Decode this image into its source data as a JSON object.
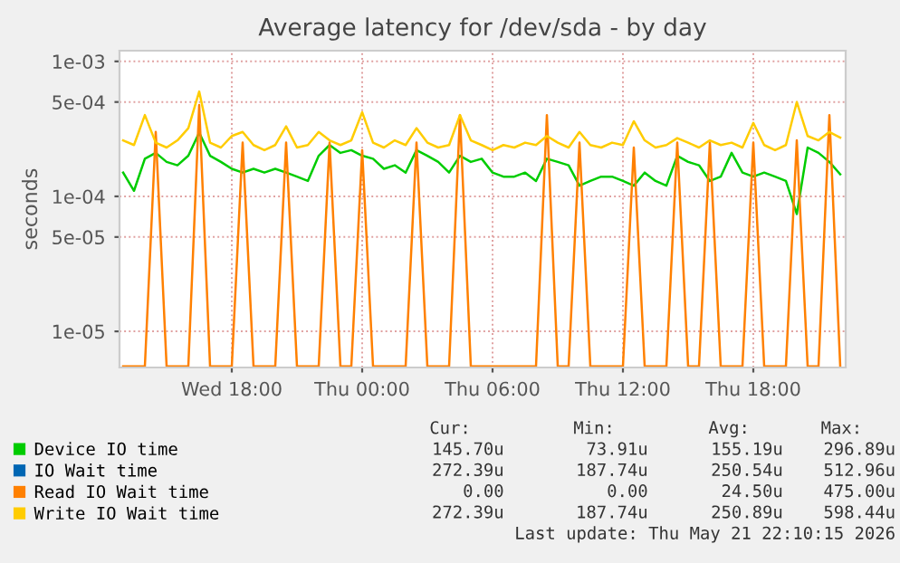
{
  "chart_data": {
    "type": "line",
    "title": "Average latency for /dev/sda - by day",
    "ylabel": "seconds",
    "log": "y",
    "x": [
      "2026-05-20T13:00",
      "2026-05-20T13:30",
      "2026-05-20T14:00",
      "2026-05-20T14:30",
      "2026-05-20T15:00",
      "2026-05-20T15:30",
      "2026-05-20T16:00",
      "2026-05-20T16:30",
      "2026-05-20T17:00",
      "2026-05-20T17:30",
      "2026-05-20T18:00",
      "2026-05-20T18:30",
      "2026-05-20T19:00",
      "2026-05-20T19:30",
      "2026-05-20T20:00",
      "2026-05-20T20:30",
      "2026-05-20T21:00",
      "2026-05-20T21:30",
      "2026-05-20T22:00",
      "2026-05-20T22:30",
      "2026-05-20T23:00",
      "2026-05-20T23:30",
      "2026-05-21T00:00",
      "2026-05-21T00:30",
      "2026-05-21T01:00",
      "2026-05-21T01:30",
      "2026-05-21T02:00",
      "2026-05-21T02:30",
      "2026-05-21T03:00",
      "2026-05-21T03:30",
      "2026-05-21T04:00",
      "2026-05-21T04:30",
      "2026-05-21T05:00",
      "2026-05-21T05:30",
      "2026-05-21T06:00",
      "2026-05-21T06:30",
      "2026-05-21T07:00",
      "2026-05-21T07:30",
      "2026-05-21T08:00",
      "2026-05-21T08:30",
      "2026-05-21T09:00",
      "2026-05-21T09:30",
      "2026-05-21T10:00",
      "2026-05-21T10:30",
      "2026-05-21T11:00",
      "2026-05-21T11:30",
      "2026-05-21T12:00",
      "2026-05-21T12:30",
      "2026-05-21T13:00",
      "2026-05-21T13:30",
      "2026-05-21T14:00",
      "2026-05-21T14:30",
      "2026-05-21T15:00",
      "2026-05-21T15:30",
      "2026-05-21T16:00",
      "2026-05-21T16:30",
      "2026-05-21T17:00",
      "2026-05-21T17:30",
      "2026-05-21T18:00",
      "2026-05-21T18:30",
      "2026-05-21T19:00",
      "2026-05-21T19:30",
      "2026-05-21T20:00",
      "2026-05-21T20:30",
      "2026-05-21T21:00",
      "2026-05-21T21:30",
      "2026-05-21T22:00"
    ],
    "series": [
      {
        "name": "Device IO time",
        "color": "#00cc00",
        "values": [
          0.00015,
          0.00011,
          0.00019,
          0.00021,
          0.00018,
          0.00017,
          0.0002,
          0.000297,
          0.0002,
          0.00018,
          0.00016,
          0.00015,
          0.00016,
          0.00015,
          0.00016,
          0.00015,
          0.00014,
          0.00013,
          0.0002,
          0.00024,
          0.00021,
          0.00022,
          0.0002,
          0.00019,
          0.00016,
          0.00017,
          0.00015,
          0.00022,
          0.0002,
          0.00018,
          0.00015,
          0.0002,
          0.00018,
          0.00019,
          0.00015,
          0.00014,
          0.00014,
          0.00015,
          0.00013,
          0.00019,
          0.00018,
          0.00017,
          0.00012,
          0.00013,
          0.00014,
          0.00014,
          0.00013,
          0.00012,
          0.00015,
          0.00013,
          0.00012,
          0.0002,
          0.00018,
          0.00017,
          0.00013,
          0.00014,
          0.00021,
          0.00015,
          0.00014,
          0.00015,
          0.00014,
          0.00013,
          7.4e-05,
          0.00023,
          0.00021,
          0.00018,
          0.0001457
        ]
      },
      {
        "name": "IO Wait time",
        "color": "#0066b3",
        "values": [
          null,
          null,
          null,
          null,
          null,
          null,
          null,
          null,
          null,
          null,
          null,
          null,
          null,
          null,
          null,
          null,
          null,
          null,
          null,
          null,
          null,
          null,
          null,
          null,
          null,
          null,
          null,
          null,
          null,
          null,
          null,
          null,
          null,
          null,
          null,
          null,
          null,
          null,
          null,
          null,
          null,
          null,
          null,
          null,
          null,
          null,
          null,
          null,
          null,
          null,
          null,
          null,
          null,
          null,
          null,
          null,
          null,
          null,
          null,
          null,
          null,
          null,
          null,
          null,
          null,
          null,
          null
        ]
      },
      {
        "name": "Read IO Wait time",
        "color": "#ff8000",
        "values": [
          5.5e-06,
          5.5e-06,
          5.5e-06,
          0.0003,
          5.5e-06,
          5.5e-06,
          5.5e-06,
          0.000475,
          5.5e-06,
          5.5e-06,
          5.5e-06,
          0.00025,
          5.5e-06,
          5.5e-06,
          5.5e-06,
          0.00025,
          5.5e-06,
          5.5e-06,
          5.5e-06,
          0.00025,
          5.5e-06,
          5.5e-06,
          0.00022,
          5.5e-06,
          5.5e-06,
          5.5e-06,
          5.5e-06,
          0.00025,
          5.5e-06,
          5.5e-06,
          5.5e-06,
          0.0004,
          5.5e-06,
          5.5e-06,
          5.5e-06,
          5.5e-06,
          5.5e-06,
          5.5e-06,
          5.5e-06,
          0.0004,
          5.5e-06,
          5.5e-06,
          0.00025,
          5.5e-06,
          5.5e-06,
          5.5e-06,
          5.5e-06,
          0.00023,
          5.5e-06,
          5.5e-06,
          5.5e-06,
          0.00025,
          5.5e-06,
          5.5e-06,
          0.00025,
          5.5e-06,
          5.5e-06,
          5.5e-06,
          0.00025,
          5.5e-06,
          5.5e-06,
          5.5e-06,
          0.00026,
          5.5e-06,
          5.5e-06,
          0.0004,
          5.5e-06
        ]
      },
      {
        "name": "Write IO Wait time",
        "color": "#ffcc00",
        "values": [
          0.00026,
          0.00024,
          0.0004,
          0.00025,
          0.00023,
          0.00026,
          0.00032,
          0.000598,
          0.00025,
          0.00023,
          0.00028,
          0.0003,
          0.00024,
          0.00022,
          0.00024,
          0.00033,
          0.00023,
          0.00024,
          0.0003,
          0.00026,
          0.00024,
          0.00026,
          0.00042,
          0.00025,
          0.00023,
          0.00026,
          0.00024,
          0.00032,
          0.00025,
          0.00023,
          0.00024,
          0.0004,
          0.00026,
          0.00024,
          0.00022,
          0.00024,
          0.00023,
          0.00025,
          0.00024,
          0.00028,
          0.00025,
          0.00023,
          0.0003,
          0.00024,
          0.00023,
          0.00025,
          0.00024,
          0.00036,
          0.00026,
          0.00023,
          0.00024,
          0.00027,
          0.00025,
          0.00023,
          0.00026,
          0.00024,
          0.00025,
          0.00023,
          0.00035,
          0.00024,
          0.00022,
          0.00024,
          0.0005,
          0.00028,
          0.00026,
          0.0003,
          0.000272
        ]
      }
    ],
    "xlim": [
      "2026-05-20T12:50",
      "2026-05-21T22:15"
    ],
    "xticks": [
      {
        "value": "2026-05-20T18:00",
        "label": "Wed 18:00"
      },
      {
        "value": "2026-05-21T00:00",
        "label": "Thu 00:00"
      },
      {
        "value": "2026-05-21T06:00",
        "label": "Thu 06:00"
      },
      {
        "value": "2026-05-21T12:00",
        "label": "Thu 12:00"
      },
      {
        "value": "2026-05-21T18:00",
        "label": "Thu 18:00"
      }
    ],
    "ylim": [
      5.4e-06,
      0.0012
    ],
    "yticks": [
      {
        "value": 1e-05,
        "label": "1e-05"
      },
      {
        "value": 5e-05,
        "label": "5e-05"
      },
      {
        "value": 0.0001,
        "label": "1e-04"
      },
      {
        "value": 0.0005,
        "label": "5e-04"
      },
      {
        "value": 0.001,
        "label": "1e-03"
      }
    ],
    "grid": true,
    "legend": "bottom",
    "annotations": [
      "Cur:",
      "Min:",
      "Avg:",
      "Max:",
      "145.70u",
      "73.91u",
      "155.19u",
      "296.89u",
      "272.39u",
      "187.74u",
      "250.54u",
      "512.96u",
      "0.00",
      "0.00",
      "24.50u",
      "475.00u",
      "272.39u",
      "187.74u",
      "250.89u",
      "598.44u",
      "Last update: Thu May 21 22:10:15 2026"
    ]
  }
}
